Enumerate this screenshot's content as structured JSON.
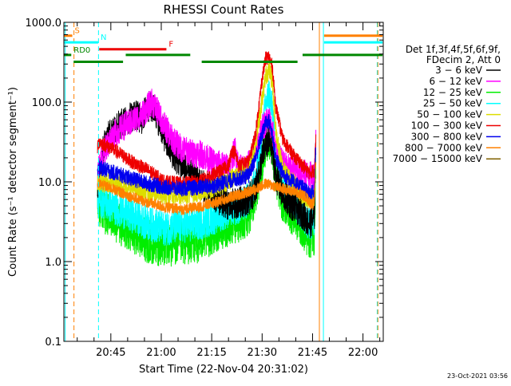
{
  "chart_data": {
    "type": "line",
    "title": "RHESSI Count Rates",
    "xlabel": "Start Time (22-Nov-04 20:31:02)",
    "ylabel": "Count Rate (s⁻¹ detector segment⁻¹)",
    "yscale": "log",
    "xlim": [
      0,
      95
    ],
    "ylim": [
      0.1,
      1000
    ],
    "x_unit": "minutes after 20:31:02",
    "x_ticks": [
      {
        "x": 13.97,
        "label": "20:45"
      },
      {
        "x": 28.97,
        "label": "21:00"
      },
      {
        "x": 43.97,
        "label": "21:15"
      },
      {
        "x": 58.97,
        "label": "21:30"
      },
      {
        "x": 73.97,
        "label": "21:45"
      },
      {
        "x": 88.97,
        "label": "22:00"
      }
    ],
    "y_ticks": [
      {
        "y": 0.1,
        "label": "0.1"
      },
      {
        "y": 1,
        "label": "1.0"
      },
      {
        "y": 10,
        "label": "10.0"
      },
      {
        "y": 100,
        "label": "100.0"
      },
      {
        "y": 1000,
        "label": "1000.0"
      }
    ],
    "grid": false,
    "legend": {
      "position": "right",
      "header": [
        "Det 1f,3f,4f,5f,6f,9f,",
        "FDecim 2, Att 0"
      ],
      "entries": [
        {
          "label": "3 − 6 keV",
          "color": "#000000"
        },
        {
          "label": "6 − 12 keV",
          "color": "#ff00ff"
        },
        {
          "label": "12 − 25 keV",
          "color": "#00ee00"
        },
        {
          "label": "25 − 50 keV",
          "color": "#00ffff"
        },
        {
          "label": "50 − 100 keV",
          "color": "#dddd00"
        },
        {
          "label": "100 − 300 keV",
          "color": "#ee0000"
        },
        {
          "label": "300 − 800 keV",
          "color": "#0000ee"
        },
        {
          "label": "800 − 7000 keV",
          "color": "#ff8000"
        },
        {
          "label": "7000 − 15000 keV",
          "color": "#806000"
        }
      ]
    },
    "series": [
      {
        "name": "12 − 25 keV",
        "color": "#00ee00",
        "noise": 0.28,
        "x": [
          10,
          10.5,
          14,
          20,
          25,
          30,
          35,
          40,
          45,
          48,
          52,
          55,
          57,
          59,
          60,
          61,
          62,
          63,
          65,
          68,
          71,
          73,
          74.5,
          75
        ],
        "y": [
          4.5,
          5.0,
          3.5,
          2.5,
          1.8,
          1.6,
          1.7,
          1.8,
          2.4,
          2.8,
          3.2,
          4,
          7,
          18,
          30,
          38,
          28,
          12,
          6,
          4,
          2.8,
          2.0,
          2.2,
          25
        ]
      },
      {
        "name": "25 − 50 keV",
        "color": "#00ffff",
        "noise": 0.22,
        "x": [
          10,
          10.5,
          14,
          20,
          25,
          30,
          35,
          40,
          45,
          48,
          52,
          55,
          57,
          59,
          60,
          61,
          62,
          63,
          65,
          68,
          71,
          73,
          74.5,
          75
        ],
        "y": [
          5.5,
          6.0,
          5.0,
          3.8,
          3.0,
          2.6,
          2.8,
          3.0,
          3.6,
          4.2,
          4.8,
          6,
          10,
          40,
          90,
          130,
          80,
          25,
          10,
          6,
          4,
          3,
          3.5,
          30
        ]
      },
      {
        "name": "3 − 6 keV",
        "color": "#000000",
        "noise": 0.2,
        "x": [
          10,
          10.5,
          12,
          15,
          18,
          21,
          23,
          25,
          27,
          29,
          31,
          34,
          37,
          40,
          43,
          46,
          49,
          52,
          55,
          57,
          59,
          60,
          61,
          62,
          63,
          65,
          68,
          71,
          73,
          74.5,
          75
        ],
        "y": [
          9,
          12,
          30,
          48,
          55,
          70,
          60,
          90,
          80,
          48,
          28,
          18,
          13,
          10,
          8,
          6,
          5,
          5.5,
          6,
          8,
          20,
          30,
          32,
          25,
          12,
          7,
          5,
          4,
          3,
          3.5,
          35
        ]
      },
      {
        "name": "6 − 12 keV",
        "color": "#ff00ff",
        "noise": 0.18,
        "x": [
          10,
          10.5,
          12,
          15,
          18,
          21,
          24,
          26,
          27,
          29,
          32,
          35,
          38,
          41,
          44,
          47,
          49,
          50,
          51,
          52,
          54,
          56,
          58,
          59,
          60,
          61,
          62,
          63,
          65,
          68,
          71,
          73,
          74.5,
          75
        ],
        "y": [
          12,
          15,
          25,
          40,
          50,
          60,
          75,
          100,
          90,
          60,
          35,
          26,
          23,
          22,
          18,
          16,
          15,
          20,
          25,
          15,
          14,
          20,
          35,
          50,
          55,
          62,
          45,
          25,
          17,
          14,
          13,
          12,
          12,
          40
        ]
      },
      {
        "name": "50 − 100 keV",
        "color": "#dddd00",
        "noise": 0.13,
        "x": [
          10,
          10.5,
          15,
          20,
          25,
          30,
          35,
          40,
          45,
          48,
          52,
          55,
          57,
          59,
          60,
          61,
          62,
          63,
          65,
          68,
          71,
          73,
          74.5,
          75
        ],
        "y": [
          10,
          10,
          9.5,
          8.5,
          7.5,
          6.8,
          7,
          7.5,
          8.5,
          10,
          12,
          14,
          30,
          110,
          210,
          260,
          180,
          45,
          15,
          10,
          7,
          6,
          6.5,
          20
        ]
      },
      {
        "name": "100 − 300 keV",
        "color": "#ee0000",
        "noise": 0.09,
        "x": [
          10,
          10.5,
          15,
          20,
          25,
          30,
          35,
          40,
          44,
          47,
          49,
          50,
          51,
          52,
          55,
          57,
          59,
          60,
          61,
          62,
          63,
          65,
          68,
          71,
          73,
          74.5,
          75
        ],
        "y": [
          26,
          32,
          25,
          18,
          14,
          10,
          9.5,
          10,
          12,
          14,
          16,
          25,
          23,
          16,
          18,
          40,
          200,
          350,
          370,
          280,
          90,
          35,
          22,
          16,
          13,
          14,
          40
        ]
      },
      {
        "name": "300 − 800 keV",
        "color": "#0000ee",
        "noise": 0.1,
        "x": [
          10,
          10.5,
          15,
          20,
          25,
          30,
          35,
          40,
          45,
          48,
          52,
          55,
          57,
          59,
          60,
          61,
          62,
          63,
          65,
          68,
          71,
          73,
          74.5,
          75
        ],
        "y": [
          14,
          15,
          13,
          11,
          9.5,
          8.5,
          8.2,
          8.5,
          9,
          10,
          11,
          12,
          20,
          40,
          55,
          58,
          40,
          20,
          13,
          10,
          8.5,
          7,
          7.5,
          30
        ]
      },
      {
        "name": "800 − 7000 keV",
        "color": "#ff8000",
        "noise": 0.07,
        "x": [
          10,
          10.5,
          15,
          20,
          25,
          30,
          35,
          40,
          45,
          50,
          55,
          58,
          60,
          62,
          64,
          66,
          69,
          72,
          74,
          74.5,
          75
        ],
        "y": [
          9,
          9.5,
          8,
          6.5,
          5.5,
          4.8,
          4.5,
          4.8,
          5.5,
          6.5,
          7.5,
          8.5,
          9.5,
          9,
          8.5,
          8,
          7.5,
          6.5,
          5,
          6,
          20
        ]
      }
    ],
    "annotations": [
      {
        "type": "vline",
        "x": 0.4,
        "color": "#00ffff",
        "dash": false
      },
      {
        "type": "vline",
        "x": 3.0,
        "color": "#ff8000",
        "dash": true
      },
      {
        "type": "vline",
        "x": 10.3,
        "color": "#00ffff",
        "dash": true
      },
      {
        "type": "vline",
        "x": 76.0,
        "color": "#ff8000",
        "dash": false
      },
      {
        "type": "vline",
        "x": 77.2,
        "color": "#00ffff",
        "dash": false
      },
      {
        "type": "vline",
        "x": 93.2,
        "color": "#00ffff",
        "dash": true
      },
      {
        "type": "vline",
        "x": 93.4,
        "color": "#ff8000",
        "dash": true
      },
      {
        "type": "hbar",
        "x0": 0,
        "x1": 2.5,
        "y": 680,
        "color": "#ff8000",
        "label": "S"
      },
      {
        "type": "hbar",
        "x0": 0,
        "x1": 10.2,
        "y": 560,
        "color": "#00ffff",
        "label": "N"
      },
      {
        "type": "hbar",
        "x0": 10.5,
        "x1": 30.5,
        "y": 460,
        "color": "#ee0000",
        "label": "F"
      },
      {
        "type": "hbar",
        "x0": 0,
        "x1": 2.2,
        "y": 390,
        "color": "#008800",
        "label": "RD0"
      },
      {
        "type": "hbar",
        "x0": 2.9,
        "x1": 17.6,
        "y": 320,
        "color": "#008800"
      },
      {
        "type": "hbar",
        "x0": 18.4,
        "x1": 37.6,
        "y": 390,
        "color": "#008800"
      },
      {
        "type": "hbar",
        "x0": 41.0,
        "x1": 69.5,
        "y": 320,
        "color": "#008800"
      },
      {
        "type": "hbar",
        "x0": 71.0,
        "x1": 94.8,
        "y": 390,
        "color": "#008800"
      },
      {
        "type": "hbar",
        "x0": 77.4,
        "x1": 94.8,
        "y": 680,
        "color": "#ff8000"
      },
      {
        "type": "hbar",
        "x0": 77.4,
        "x1": 94.8,
        "y": 560,
        "color": "#00ffff"
      }
    ],
    "footer": "23-Oct-2021 03:56"
  }
}
